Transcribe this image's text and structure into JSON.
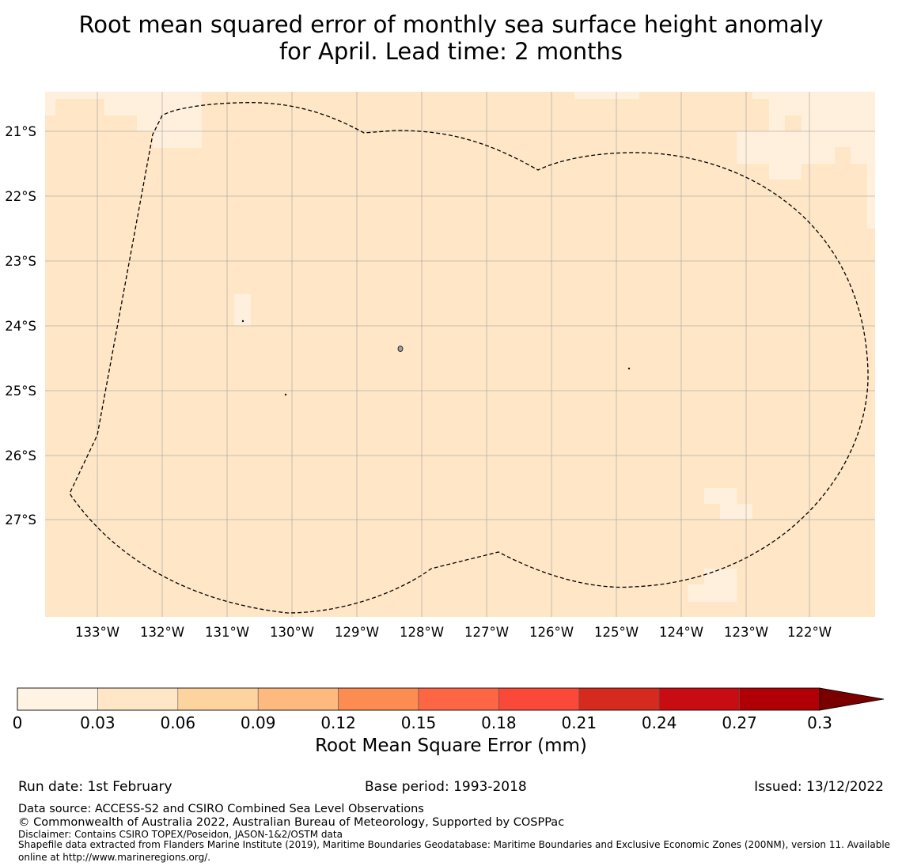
{
  "title": {
    "line1": "Root mean squared error of monthly sea surface height anomaly",
    "line2": "for April. Lead time: 2 months"
  },
  "map": {
    "lon_ticks": [
      "133°W",
      "132°W",
      "131°W",
      "130°W",
      "129°W",
      "128°W",
      "127°W",
      "126°W",
      "125°W",
      "124°W",
      "123°W",
      "122°W"
    ],
    "lat_ticks": [
      "21°S",
      "22°S",
      "23°S",
      "24°S",
      "25°S",
      "26°S",
      "27°S"
    ],
    "colors": {
      "field": "#fee6c6",
      "field_low": "#fff0dd",
      "grid": "#9e9e9e",
      "boundary": "#000000",
      "land": "#a0a0a0"
    }
  },
  "colorbar": {
    "label": "Root Mean Square Error (mm)",
    "ticks": [
      "0",
      "0.03",
      "0.06",
      "0.09",
      "0.12",
      "0.15",
      "0.18",
      "0.21",
      "0.24",
      "0.27",
      "0.3"
    ],
    "colors": [
      "#fff3e3",
      "#fee6c6",
      "#fed49e",
      "#fdb97e",
      "#fc8c51",
      "#fd6645",
      "#fa4938",
      "#d62a1f",
      "#c90b12",
      "#b10005"
    ],
    "extend_color": "#7a0000"
  },
  "footer": {
    "run_date": "Run date: 1st February",
    "base_period": "Base period: 1993-2018",
    "issued": "Issued: 13/12/2022",
    "data_source": "Data source: ACCESS-S2 and CSIRO Combined Sea Level Observations",
    "copyright": "© Commonwealth of Australia 2022, Australian Bureau of Meteorology, Supported by COSPPac",
    "disclaimer": "Disclaimer: Contains CSIRO TOPEX/Poseidon, JASON-1&2/OSTM data",
    "shapefile_1": "Shapefile data extracted from Flanders Marine Institute (2019), Maritime Boundaries Geodatabase: Maritime Boundaries and Exclusive Economic Zones (200NM), version 11. Available",
    "shapefile_2": "online at http://www.marineregions.org/."
  }
}
